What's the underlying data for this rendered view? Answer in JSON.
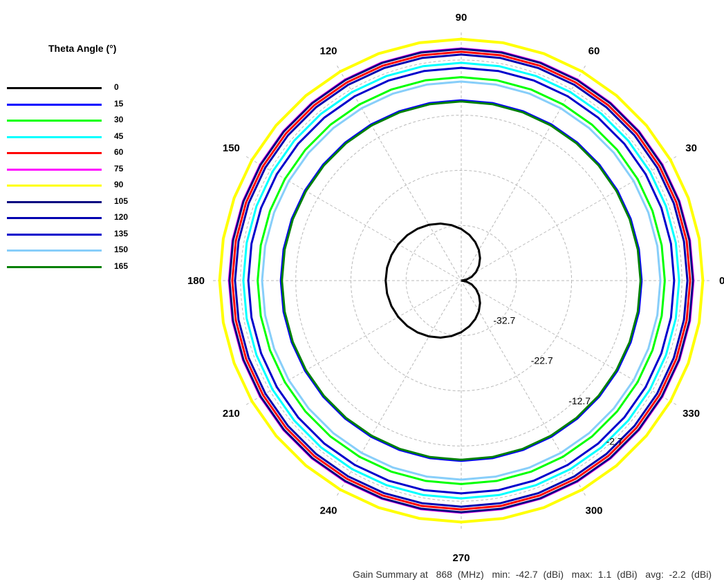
{
  "chart_data": {
    "type": "polar-line",
    "legend_title": "Theta Angle (°)",
    "legend_placement": "left",
    "grid": true,
    "angle_ticks": [
      "0",
      "30",
      "60",
      "90",
      "120",
      "150",
      "180",
      "210",
      "240",
      "270",
      "300",
      "330"
    ],
    "radial_ticks": [
      "-32.7",
      "-22.7",
      "-12.7",
      "-2.7"
    ],
    "r_range": [
      -42.7,
      2.3
    ],
    "series": [
      {
        "name": "0",
        "color": "#000000",
        "shape": "cardioid",
        "peak_dbi": -29.0,
        "null_dbi": -42.7,
        "peak_phi": 180
      },
      {
        "name": "15",
        "color": "#0000ff",
        "shape": "circle",
        "gain_dbi": -10.0
      },
      {
        "name": "30",
        "color": "#00ff00",
        "shape": "circle",
        "gain_dbi": -5.8
      },
      {
        "name": "45",
        "color": "#00ffff",
        "shape": "circle",
        "gain_dbi": -3.2
      },
      {
        "name": "60",
        "color": "#ff0000",
        "shape": "circle",
        "gain_dbi": -1.2
      },
      {
        "name": "75",
        "color": "#ff00ff",
        "shape": "circle",
        "gain_dbi": -0.6
      },
      {
        "name": "90",
        "color": "#ffff00",
        "shape": "circle",
        "gain_dbi": 1.1
      },
      {
        "name": "105",
        "color": "#000080",
        "shape": "circle",
        "gain_dbi": -0.7
      },
      {
        "name": "120",
        "color": "#0000b0",
        "shape": "circle",
        "gain_dbi": -1.7
      },
      {
        "name": "135",
        "color": "#0000cc",
        "shape": "circle",
        "gain_dbi": -4.1
      },
      {
        "name": "150",
        "color": "#87cefa",
        "shape": "circle",
        "gain_dbi": -6.6
      },
      {
        "name": "165",
        "color": "#008000",
        "shape": "circle",
        "gain_dbi": -10.2
      }
    ]
  },
  "summary": {
    "prefix": "Gain Summary at",
    "freq": "868",
    "freq_unit": "(MHz)",
    "min_label": "min:",
    "min_value": "-42.7",
    "max_label": "max:",
    "max_value": "1.1",
    "avg_label": "avg:",
    "avg_value": "-2.2",
    "unit": "(dBi)"
  }
}
